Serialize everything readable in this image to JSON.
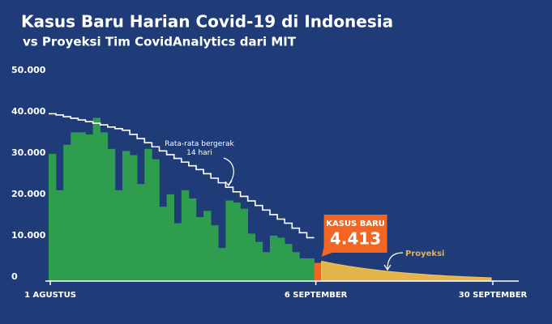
{
  "chart_data": {
    "type": "bar",
    "title": "Kasus Baru Harian Covid-19 di Indonesia",
    "subtitle": "vs Proyeksi Tim CovidAnalytics dari MIT",
    "categories": [
      "1 AGUSTUS",
      null,
      null,
      null,
      null,
      null,
      null,
      null,
      null,
      null,
      null,
      null,
      null,
      null,
      null,
      null,
      null,
      null,
      null,
      null,
      null,
      null,
      null,
      null,
      null,
      null,
      null,
      null,
      null,
      null,
      null,
      null,
      null,
      null,
      null,
      null,
      "6 SEPTEMBER",
      null,
      null,
      null,
      null,
      null,
      null,
      null,
      null,
      null,
      null,
      null,
      null,
      null,
      null,
      null,
      null,
      null,
      null,
      null,
      null,
      null,
      null,
      null,
      "30 SEPTEMBER"
    ],
    "ylim": [
      0,
      50000
    ],
    "yticks": [
      {
        "value": 0,
        "label": "0"
      },
      {
        "value": 10000,
        "label": "10.000"
      },
      {
        "value": 20000,
        "label": "20.000"
      },
      {
        "value": 30000,
        "label": "30.000"
      },
      {
        "value": 40000,
        "label": "40.000"
      },
      {
        "value": 50000,
        "label": "50.000"
      }
    ],
    "grid": false,
    "series": [
      {
        "type": "bar",
        "color": "#2e9d4e",
        "values": [
          30800,
          22000,
          33000,
          36000,
          36000,
          35500,
          39500,
          36000,
          32000,
          22000,
          31500,
          30500,
          23500,
          32000,
          29500,
          18000,
          21000,
          14000,
          22000,
          20000,
          15500,
          17000,
          13500,
          8000,
          19500,
          19000,
          17500,
          11500,
          9500,
          7000,
          11000,
          10500,
          9000,
          7000,
          5500,
          5500,
          null,
          null,
          null,
          null,
          null,
          null,
          null,
          null,
          null,
          null,
          null,
          null,
          null,
          null,
          null,
          null,
          null,
          null,
          null,
          null,
          null,
          null,
          null,
          null,
          null
        ]
      },
      {
        "type": "bar",
        "name": "KASUS BARU",
        "color": "#f26522",
        "values": [
          null,
          null,
          null,
          null,
          null,
          null,
          null,
          null,
          null,
          null,
          null,
          null,
          null,
          null,
          null,
          null,
          null,
          null,
          null,
          null,
          null,
          null,
          null,
          null,
          null,
          null,
          null,
          null,
          null,
          null,
          null,
          null,
          null,
          null,
          null,
          null,
          4413,
          null,
          null,
          null,
          null,
          null,
          null,
          null,
          null,
          null,
          null,
          null,
          null,
          null,
          null,
          null,
          null,
          null,
          null,
          null,
          null,
          null,
          null,
          null,
          null
        ],
        "value_labels": [
          null,
          null,
          null,
          null,
          null,
          null,
          null,
          null,
          null,
          null,
          null,
          null,
          null,
          null,
          null,
          null,
          null,
          null,
          null,
          null,
          null,
          null,
          null,
          null,
          null,
          null,
          null,
          null,
          null,
          null,
          null,
          null,
          null,
          null,
          null,
          null,
          "4.413",
          null,
          null,
          null,
          null,
          null,
          null,
          null,
          null,
          null,
          null,
          null,
          null,
          null,
          null,
          null,
          null,
          null,
          null,
          null,
          null,
          null,
          null,
          null,
          null
        ]
      },
      {
        "type": "step",
        "name": "Rata-rata bergerak 14 hari",
        "color": "#ffffff",
        "values": [
          40500,
          40200,
          39800,
          39400,
          39000,
          38600,
          38200,
          37800,
          37300,
          36900,
          36500,
          35500,
          34500,
          33500,
          32500,
          31500,
          30600,
          29700,
          28800,
          27900,
          27000,
          26000,
          24900,
          23800,
          22700,
          21600,
          20500,
          19400,
          18300,
          17200,
          16100,
          15000,
          14000,
          12800,
          11700,
          10500,
          null,
          null,
          null,
          null,
          null,
          null,
          null,
          null,
          null,
          null,
          null,
          null,
          null,
          null,
          null,
          null,
          null,
          null,
          null,
          null,
          null,
          null,
          null,
          null,
          null
        ]
      },
      {
        "type": "area",
        "name": "Proyeksi",
        "color": "#e3b449",
        "values": [
          null,
          null,
          null,
          null,
          null,
          null,
          null,
          null,
          null,
          null,
          null,
          null,
          null,
          null,
          null,
          null,
          null,
          null,
          null,
          null,
          null,
          null,
          null,
          null,
          null,
          null,
          null,
          null,
          null,
          null,
          null,
          null,
          null,
          null,
          null,
          null,
          null,
          4800,
          4440,
          4100,
          3790,
          3500,
          3240,
          2990,
          2770,
          2560,
          2360,
          2180,
          2020,
          1870,
          1730,
          1600,
          1480,
          1370,
          1260,
          1170,
          1080,
          1000,
          920,
          850,
          790
        ]
      }
    ]
  }
}
